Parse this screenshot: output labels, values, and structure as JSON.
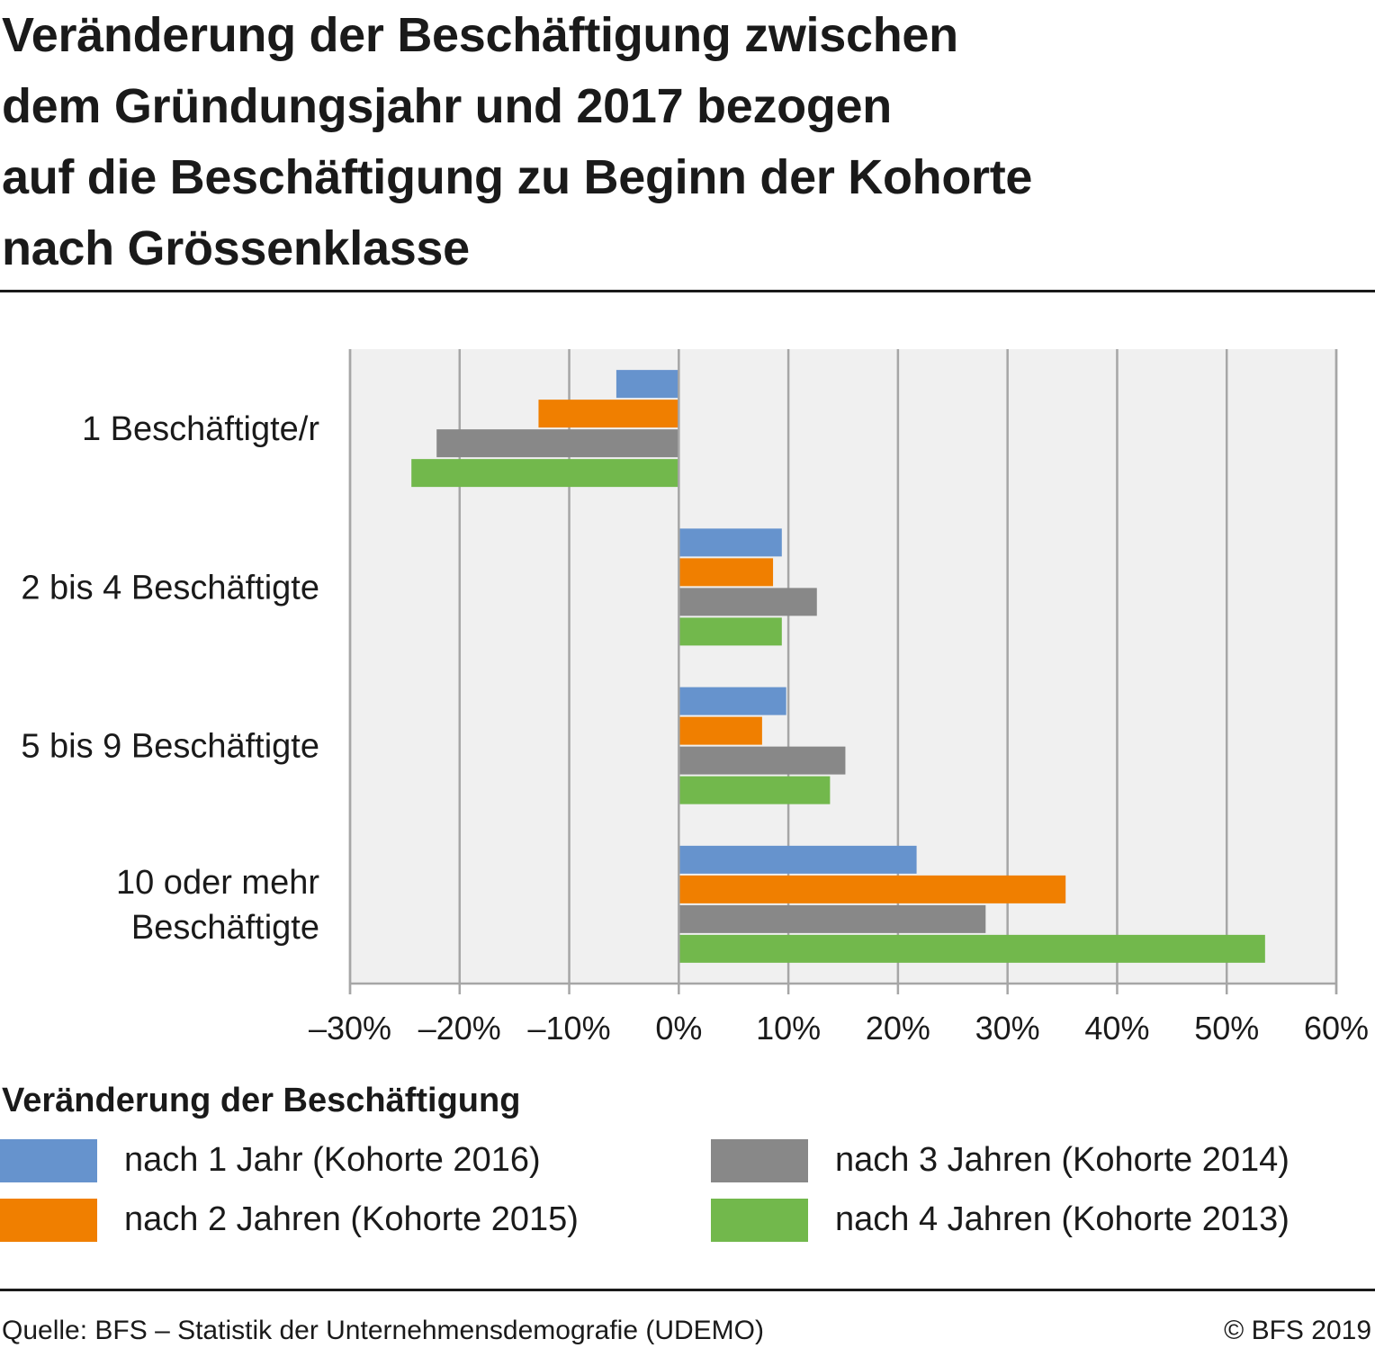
{
  "title": "Veränderung der Beschäftigung zwischen\ndem Gründungsjahr und 2017 bezogen\nauf die Beschäftigung zu Beginn der Kohorte\nnach Grössenklasse",
  "legend_title": "Veränderung der Beschäftigung",
  "source": "Quelle: BFS – Statistik der Unternehmensdemografie (UDEMO)",
  "copyright": "© BFS 2019",
  "chart_data": {
    "type": "bar",
    "orientation": "horizontal",
    "categories": [
      [
        "1 Beschäftigte/r"
      ],
      [
        "2 bis 4 Beschäftigte"
      ],
      [
        "5 bis 9 Beschäftigte"
      ],
      [
        "10 oder mehr",
        "Beschäftigte"
      ]
    ],
    "series": [
      {
        "name": "nach 1 Jahr (Kohorte 2016)",
        "color": "#6693cd",
        "values": [
          -5.7,
          9.4,
          9.8,
          21.7
        ]
      },
      {
        "name": "nach 2 Jahren (Kohorte 2015)",
        "color": "#f07f00",
        "values": [
          -12.8,
          8.6,
          7.6,
          35.3
        ]
      },
      {
        "name": "nach 3 Jahren (Kohorte 2014)",
        "color": "#888888",
        "values": [
          -22.1,
          12.6,
          15.2,
          28.0
        ]
      },
      {
        "name": "nach 4 Jahren (Kohorte 2013)",
        "color": "#72b84c",
        "values": [
          -24.4,
          9.4,
          13.8,
          53.5
        ]
      }
    ],
    "xlim": [
      -30,
      60
    ],
    "xticks": [
      -30,
      -20,
      -10,
      0,
      10,
      20,
      30,
      40,
      50,
      60
    ],
    "xtick_labels": [
      "–30%",
      "–20%",
      "–10%",
      "0%",
      "10%",
      "20%",
      "30%",
      "40%",
      "50%",
      "60%"
    ],
    "grid": true,
    "plot_background": "#f0f0f0",
    "legend_position": "bottom"
  }
}
